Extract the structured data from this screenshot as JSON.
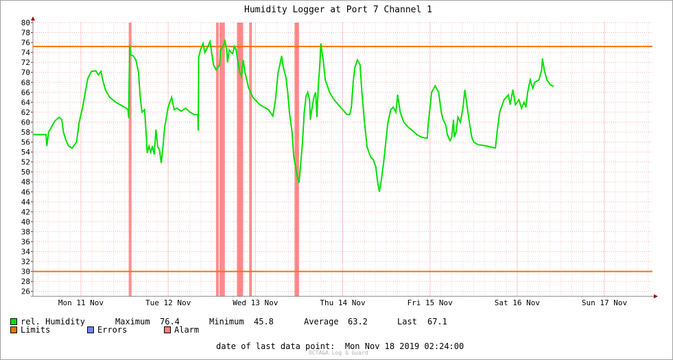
{
  "chart_data": {
    "type": "line",
    "title": "Humidity Logger at Port 7 Channel 1",
    "ylim": [
      25,
      80
    ],
    "yticks": [
      26,
      28,
      30,
      32,
      34,
      36,
      38,
      40,
      42,
      44,
      46,
      48,
      50,
      52,
      54,
      56,
      58,
      60,
      62,
      64,
      66,
      68,
      70,
      72,
      74,
      76,
      78,
      80
    ],
    "xlim_days": [
      -0.55,
      6.55
    ],
    "xticks": [
      {
        "label": "Mon 11 Nov",
        "day": 0
      },
      {
        "label": "Tue 12 Nov",
        "day": 1
      },
      {
        "label": "Wed 13 Nov",
        "day": 2
      },
      {
        "label": "Thu 14 Nov",
        "day": 3
      },
      {
        "label": "Fri 15 Nov",
        "day": 4
      },
      {
        "label": "Sat 16 Nov",
        "day": 5
      },
      {
        "label": "Sun 17 Nov",
        "day": 6
      }
    ],
    "grid": true,
    "limits": [
      75.2,
      30
    ],
    "alarm_days": [
      0.56,
      1.56,
      1.6,
      1.63,
      1.8,
      1.82,
      1.84,
      1.94,
      2.46,
      2.48
    ],
    "series": [
      {
        "name": "rel. Humidity",
        "color": "#00e000",
        "points": [
          [
            -0.55,
            57.5
          ],
          [
            -0.4,
            57.5
          ],
          [
            -0.39,
            55.2
          ],
          [
            -0.37,
            58
          ],
          [
            -0.3,
            60.2
          ],
          [
            -0.25,
            61
          ],
          [
            -0.22,
            60.5
          ],
          [
            -0.2,
            58
          ],
          [
            -0.17,
            56.3
          ],
          [
            -0.14,
            55.2
          ],
          [
            -0.1,
            54.8
          ],
          [
            -0.05,
            56
          ],
          [
            -0.02,
            60
          ],
          [
            0.02,
            63
          ],
          [
            0.05,
            66
          ],
          [
            0.08,
            68.8
          ],
          [
            0.12,
            70.2
          ],
          [
            0.17,
            70.3
          ],
          [
            0.2,
            69.5
          ],
          [
            0.23,
            70.2
          ],
          [
            0.25,
            68.5
          ],
          [
            0.28,
            66.5
          ],
          [
            0.33,
            65
          ],
          [
            0.4,
            64
          ],
          [
            0.5,
            63
          ],
          [
            0.54,
            62.5
          ],
          [
            0.548,
            60.8
          ],
          [
            0.552,
            68
          ],
          [
            0.56,
            75.5
          ],
          [
            0.57,
            73.5
          ],
          [
            0.6,
            73.3
          ],
          [
            0.63,
            72.5
          ],
          [
            0.66,
            70
          ],
          [
            0.68,
            65
          ],
          [
            0.7,
            62
          ],
          [
            0.73,
            62.5
          ],
          [
            0.75,
            57
          ],
          [
            0.76,
            53.8
          ],
          [
            0.78,
            55.2
          ],
          [
            0.8,
            54
          ],
          [
            0.82,
            55.2
          ],
          [
            0.84,
            53.5
          ],
          [
            0.86,
            58.5
          ],
          [
            0.88,
            55
          ],
          [
            0.9,
            54.5
          ],
          [
            0.92,
            51.8
          ],
          [
            0.94,
            55
          ],
          [
            0.96,
            59
          ],
          [
            0.98,
            61
          ],
          [
            1.0,
            63
          ],
          [
            1.04,
            65
          ],
          [
            1.07,
            62.5
          ],
          [
            1.1,
            62.8
          ],
          [
            1.15,
            62.2
          ],
          [
            1.2,
            62.8
          ],
          [
            1.25,
            62
          ],
          [
            1.3,
            61.5
          ],
          [
            1.34,
            61.5
          ],
          [
            1.345,
            58.3
          ],
          [
            1.35,
            73
          ],
          [
            1.37,
            74.5
          ],
          [
            1.4,
            75.8
          ],
          [
            1.42,
            74
          ],
          [
            1.45,
            75
          ],
          [
            1.48,
            76.2
          ],
          [
            1.5,
            73.8
          ],
          [
            1.52,
            71.5
          ],
          [
            1.55,
            70.5
          ],
          [
            1.59,
            71.5
          ],
          [
            1.6,
            74.5
          ],
          [
            1.63,
            75.2
          ],
          [
            1.65,
            76.3
          ],
          [
            1.67,
            74.8
          ],
          [
            1.68,
            72
          ],
          [
            1.7,
            74.5
          ],
          [
            1.72,
            74
          ],
          [
            1.74,
            73.8
          ],
          [
            1.76,
            75.2
          ],
          [
            1.78,
            74.5
          ],
          [
            1.8,
            72
          ],
          [
            1.82,
            70
          ],
          [
            1.84,
            69.2
          ],
          [
            1.86,
            72.5
          ],
          [
            1.88,
            70
          ],
          [
            1.92,
            67
          ],
          [
            1.97,
            65
          ],
          [
            2.05,
            63.5
          ],
          [
            2.15,
            62.5
          ],
          [
            2.2,
            61.2
          ],
          [
            2.23,
            64.5
          ],
          [
            2.26,
            70
          ],
          [
            2.28,
            71.5
          ],
          [
            2.3,
            73.3
          ],
          [
            2.32,
            71
          ],
          [
            2.35,
            69
          ],
          [
            2.37,
            66
          ],
          [
            2.39,
            62
          ],
          [
            2.42,
            58
          ],
          [
            2.44,
            53
          ],
          [
            2.46,
            51
          ],
          [
            2.48,
            49
          ],
          [
            2.5,
            47.8
          ],
          [
            2.52,
            52
          ],
          [
            2.54,
            56
          ],
          [
            2.56,
            62
          ],
          [
            2.58,
            65.2
          ],
          [
            2.6,
            66
          ],
          [
            2.62,
            64.5
          ],
          [
            2.63,
            60.5
          ],
          [
            2.65,
            63
          ],
          [
            2.67,
            65
          ],
          [
            2.69,
            66
          ],
          [
            2.705,
            61
          ],
          [
            2.72,
            67
          ],
          [
            2.74,
            72
          ],
          [
            2.75,
            75.8
          ],
          [
            2.78,
            72
          ],
          [
            2.8,
            68.5
          ],
          [
            2.85,
            66
          ],
          [
            2.9,
            64.5
          ],
          [
            2.95,
            63.5
          ],
          [
            3.0,
            62.5
          ],
          [
            3.05,
            61.5
          ],
          [
            3.08,
            61.5
          ],
          [
            3.1,
            63
          ],
          [
            3.12,
            68
          ],
          [
            3.14,
            71
          ],
          [
            3.17,
            72.5
          ],
          [
            3.2,
            71.5
          ],
          [
            3.22,
            66
          ],
          [
            3.25,
            60
          ],
          [
            3.28,
            55
          ],
          [
            3.32,
            53
          ],
          [
            3.35,
            52.5
          ],
          [
            3.38,
            51
          ],
          [
            3.4,
            48
          ],
          [
            3.42,
            46
          ],
          [
            3.44,
            48
          ],
          [
            3.47,
            52
          ],
          [
            3.5,
            57
          ],
          [
            3.52,
            60
          ],
          [
            3.55,
            62.5
          ],
          [
            3.58,
            63
          ],
          [
            3.61,
            62
          ],
          [
            3.63,
            65.5
          ],
          [
            3.66,
            62
          ],
          [
            3.7,
            60
          ],
          [
            3.75,
            59
          ],
          [
            3.8,
            58.3
          ],
          [
            3.85,
            57.5
          ],
          [
            3.9,
            57
          ],
          [
            3.95,
            56.8
          ],
          [
            3.97,
            56.8
          ],
          [
            3.98,
            59.5
          ],
          [
            4.02,
            66
          ],
          [
            4.06,
            67.3
          ],
          [
            4.1,
            66
          ],
          [
            4.13,
            62
          ],
          [
            4.15,
            60.5
          ],
          [
            4.18,
            59.5
          ],
          [
            4.2,
            57.5
          ],
          [
            4.23,
            56.3
          ],
          [
            4.25,
            57
          ],
          [
            4.27,
            60.5
          ],
          [
            4.28,
            57
          ],
          [
            4.3,
            58
          ],
          [
            4.32,
            61
          ],
          [
            4.35,
            60
          ],
          [
            4.38,
            63
          ],
          [
            4.4,
            66.5
          ],
          [
            4.42,
            64
          ],
          [
            4.44,
            61.5
          ],
          [
            4.46,
            59
          ],
          [
            4.48,
            57
          ],
          [
            4.5,
            56
          ],
          [
            4.55,
            55.5
          ],
          [
            4.65,
            55.2
          ],
          [
            4.75,
            54.8
          ],
          [
            4.77,
            58
          ],
          [
            4.8,
            62
          ],
          [
            4.85,
            64.5
          ],
          [
            4.9,
            65.5
          ],
          [
            4.92,
            63.5
          ],
          [
            4.95,
            66.5
          ],
          [
            4.98,
            63.5
          ],
          [
            5.02,
            64.5
          ],
          [
            5.05,
            62.8
          ],
          [
            5.08,
            64
          ],
          [
            5.1,
            63
          ],
          [
            5.12,
            66
          ],
          [
            5.15,
            68.5
          ],
          [
            5.18,
            66.8
          ],
          [
            5.2,
            68
          ],
          [
            5.25,
            68.5
          ],
          [
            5.28,
            70.5
          ],
          [
            5.29,
            72.8
          ],
          [
            5.31,
            70.5
          ],
          [
            5.34,
            68.5
          ],
          [
            5.38,
            67.5
          ],
          [
            5.42,
            67.2
          ]
        ]
      }
    ],
    "legend": [
      {
        "label": "rel. Humidity",
        "color": "#00e000"
      },
      {
        "label": "Limits",
        "color": "#ff7000"
      },
      {
        "label": "Errors",
        "color": "#7080ff"
      },
      {
        "label": "Alarm",
        "color": "#ff8080"
      }
    ],
    "stats": {
      "max_label": "Maximum",
      "max_value": "76.4",
      "min_label": "Minimum",
      "min_value": "45.8",
      "avg_label": "Average",
      "avg_value": "63.2",
      "last_label": "Last",
      "last_value": "67.1"
    },
    "last_data_point": "date of last data point:  Mon Nov 18 2019 02:24:00",
    "watermark": "OCTA&A Log & Guard"
  }
}
